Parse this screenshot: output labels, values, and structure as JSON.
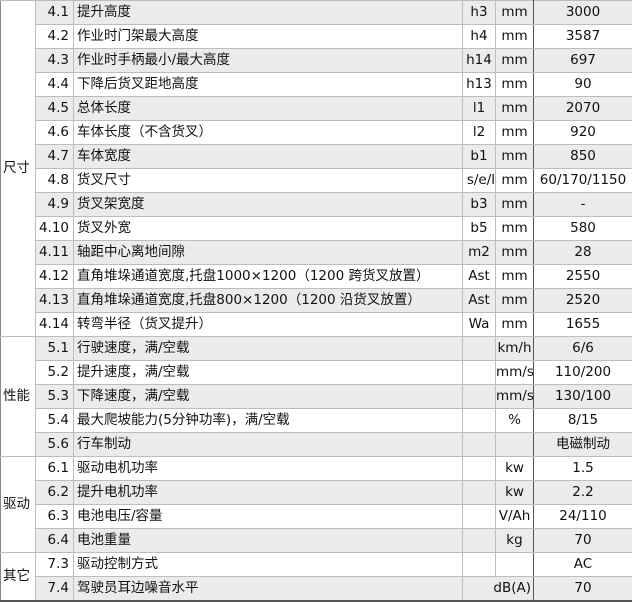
{
  "groups": [
    {
      "label": "尺寸",
      "rows": [
        {
          "idx": "4.1",
          "desc": "提升高度",
          "sym": "h3",
          "unit": "mm",
          "val": "3000"
        },
        {
          "idx": "4.2",
          "desc": "作业时门架最大高度",
          "sym": "h4",
          "unit": "mm",
          "val": "3587"
        },
        {
          "idx": "4.3",
          "desc": "作业时手柄最小/最大高度",
          "sym": "h14",
          "unit": "mm",
          "val": "697"
        },
        {
          "idx": "4.4",
          "desc": "下降后货叉距地高度",
          "sym": "h13",
          "unit": "mm",
          "val": "90"
        },
        {
          "idx": "4.5",
          "desc": "总体长度",
          "sym": "l1",
          "unit": "mm",
          "val": "2070"
        },
        {
          "idx": "4.6",
          "desc": "车体长度（不含货叉）",
          "sym": "l2",
          "unit": "mm",
          "val": "920"
        },
        {
          "idx": "4.7",
          "desc": "车体宽度",
          "sym": "b1",
          "unit": "mm",
          "val": "850"
        },
        {
          "idx": "4.8",
          "desc": "货叉尺寸",
          "sym": "s/e/l",
          "unit": "mm",
          "val": "60/170/1150"
        },
        {
          "idx": "4.9",
          "desc": "货叉架宽度",
          "sym": "b3",
          "unit": "mm",
          "val": "-"
        },
        {
          "idx": "4.10",
          "desc": "货叉外宽",
          "sym": "b5",
          "unit": "mm",
          "val": "580"
        },
        {
          "idx": "4.11",
          "desc": "轴距中心离地间隙",
          "sym": "m2",
          "unit": "mm",
          "val": "28"
        },
        {
          "idx": "4.12",
          "desc": "直角堆垛通道宽度,托盘1000×1200（1200 跨货叉放置）",
          "sym": "Ast",
          "unit": "mm",
          "val": "2550"
        },
        {
          "idx": "4.13",
          "desc": "直角堆垛通道宽度,托盘800×1200（1200 沿货叉放置）",
          "sym": "Ast",
          "unit": "mm",
          "val": "2520"
        },
        {
          "idx": "4.14",
          "desc": "转弯半径（货叉提升）",
          "sym": "Wa",
          "unit": "mm",
          "val": "1655"
        }
      ]
    },
    {
      "label": "性能",
      "rows": [
        {
          "idx": "5.1",
          "desc": "行驶速度，满/空载",
          "sym": "",
          "unit": "km/h",
          "val": "6/6"
        },
        {
          "idx": "5.2",
          "desc": "提升速度，满/空载",
          "sym": "",
          "unit": "mm/s",
          "val": "110/200"
        },
        {
          "idx": "5.3",
          "desc": "下降速度，满/空载",
          "sym": "",
          "unit": "mm/s",
          "val": "130/100"
        },
        {
          "idx": "5.4",
          "desc": "最大爬坡能力(5分钟功率)，满/空载",
          "sym": "",
          "unit": "%",
          "val": "8/15"
        },
        {
          "idx": "5.6",
          "desc": "行车制动",
          "sym": "",
          "unit": "",
          "val": "电磁制动"
        }
      ]
    },
    {
      "label": "驱动",
      "rows": [
        {
          "idx": "6.1",
          "desc": "驱动电机功率",
          "sym": "",
          "unit": "kw",
          "val": "1.5"
        },
        {
          "idx": "6.2",
          "desc": "提升电机功率",
          "sym": "",
          "unit": "kw",
          "val": "2.2"
        },
        {
          "idx": "6.3",
          "desc": "电池电压/容量",
          "sym": "",
          "unit": "V/Ah",
          "val": "24/110"
        },
        {
          "idx": "6.4",
          "desc": "电池重量",
          "sym": "",
          "unit": "kg",
          "val": "70"
        }
      ]
    },
    {
      "label": "其它",
      "rows": [
        {
          "idx": "7.3",
          "desc": "驱动控制方式",
          "sym": "",
          "unit": "",
          "val": "AC"
        },
        {
          "idx": "7.4",
          "desc": "驾驶员耳边噪音水平",
          "sym": "",
          "unit": "dB(A)",
          "val": "70",
          "unitSpan": true
        }
      ]
    }
  ]
}
